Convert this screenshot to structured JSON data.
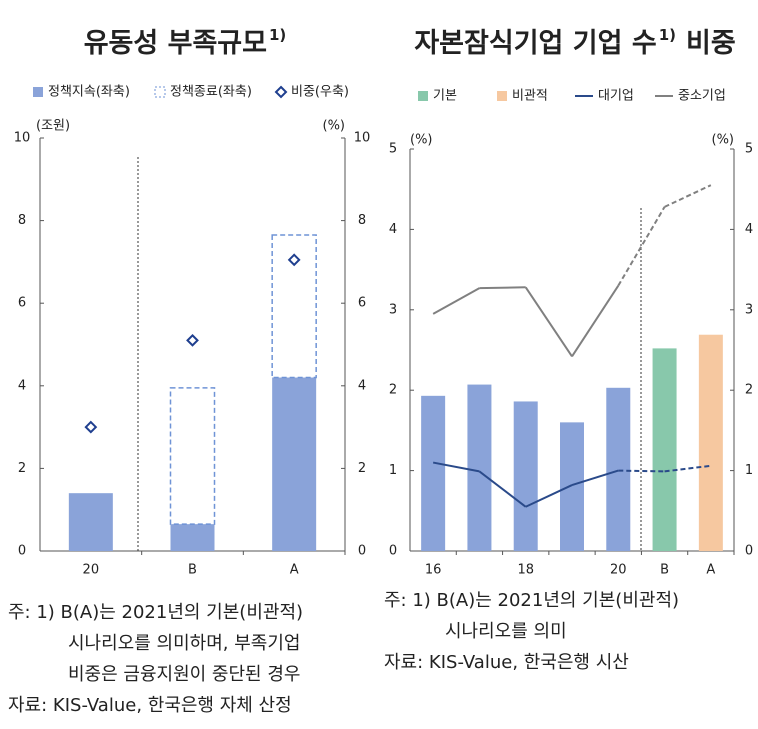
{
  "chart_data": [
    {
      "type": "combo",
      "title": "유동성 부족규모",
      "title_note": "1)",
      "y_unit": "(조원)",
      "y2_unit": "(%)",
      "categories": [
        "20",
        "B",
        "A"
      ],
      "series": [
        {
          "name": "정책지속(좌축)",
          "kind": "bar",
          "color": "#8aa3d9",
          "values": [
            1.4,
            0.65,
            4.2
          ]
        },
        {
          "name": "정책종료(좌축)",
          "kind": "bar",
          "style": "dashed",
          "stacked": true,
          "color": "#6f93d6",
          "values": [
            null,
            3.3,
            3.45
          ]
        },
        {
          "name": "비중(우축)",
          "kind": "marker",
          "axis": "y2",
          "color": "#1f3f8f",
          "values": [
            3.0,
            5.1,
            7.05
          ]
        }
      ],
      "ylim": [
        0,
        10
      ],
      "yticks": [
        0,
        2,
        4,
        6,
        8,
        10
      ],
      "y2lim": [
        0,
        10
      ],
      "y2ticks": [
        0,
        2,
        4,
        6,
        8,
        10
      ],
      "notes": [
        "주: 1) B(A)는 2021년의 기본(비관적)",
        "시나리오를 의미하며, 부족기업",
        "비중은 금융지원이 중단된 경우",
        "자료: KIS-Value, 한국은행 자체 산정"
      ]
    },
    {
      "type": "combo",
      "title": "자본잠식기업 기업 수",
      "title_note": "1)",
      "title_end": "비중",
      "y_unit": "(%)",
      "y2_unit": "(%)",
      "categories": [
        "16",
        null,
        "18",
        null,
        "20",
        "B",
        "A"
      ],
      "series": [
        {
          "kind": "bar",
          "color": "#8aa3d9",
          "values": [
            1.93,
            2.07,
            1.86,
            1.6,
            2.03,
            null,
            null
          ]
        },
        {
          "name": "기본",
          "kind": "bar",
          "color": "#88c8ab",
          "values": [
            null,
            null,
            null,
            null,
            null,
            2.52,
            null
          ]
        },
        {
          "name": "비관적",
          "kind": "bar",
          "color": "#f6c8a0",
          "values": [
            null,
            null,
            null,
            null,
            null,
            null,
            2.69
          ]
        },
        {
          "name": "대기업",
          "kind": "line",
          "color": "#2a4a8a",
          "dashed_from": 4,
          "values": [
            1.1,
            0.99,
            0.55,
            0.82,
            1.0,
            0.99,
            1.06
          ]
        },
        {
          "name": "중소기업",
          "kind": "line",
          "color": "#808080",
          "dashed_from": 4,
          "values": [
            2.95,
            3.27,
            3.28,
            2.42,
            3.3,
            4.28,
            4.55
          ]
        }
      ],
      "ylim": [
        0,
        5
      ],
      "yticks": [
        0,
        1,
        2,
        3,
        4,
        5
      ],
      "y2lim": [
        0,
        5
      ],
      "y2ticks": [
        0,
        1,
        2,
        3,
        4,
        5
      ],
      "notes": [
        "주: 1) B(A)는 2021년의 기본(비관적)",
        "시나리오를 의미",
        "자료: KIS-Value, 한국은행 시산"
      ]
    }
  ]
}
